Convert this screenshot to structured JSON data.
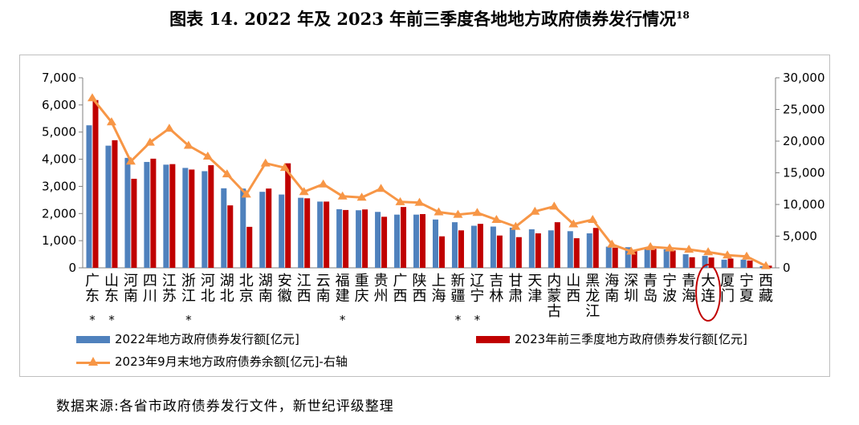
{
  "title": {
    "main": "图表 14. 2022 年及 2023 年前三季度各地地方政府债券发行情况",
    "footnote": "18"
  },
  "source": "数据来源:各省市政府债券发行文件，新世纪评级整理",
  "chart_data": {
    "type": "bar+line",
    "title": "2022年及2023年前三季度各地地方政府债券发行情况",
    "categories": [
      "广东*",
      "山东*",
      "河南",
      "四川",
      "江苏",
      "浙江*",
      "河北",
      "湖北",
      "北京",
      "湖南",
      "安徽",
      "江西",
      "云南",
      "福建*",
      "重庆",
      "贵州",
      "广西",
      "陕西",
      "上海",
      "新疆*",
      "辽宁*",
      "吉林",
      "甘肃",
      "天津",
      "内蒙古",
      "山西",
      "黑龙江",
      "海南",
      "深圳",
      "青岛",
      "宁波",
      "青海",
      "大连",
      "厦门",
      "宁夏",
      "西藏"
    ],
    "series": [
      {
        "name": "2022年地方政府债券发行额[亿元]",
        "axis": "left",
        "color": "#4f81bd",
        "values": [
          5250,
          4500,
          4050,
          3900,
          3800,
          3680,
          3560,
          2930,
          2920,
          2800,
          2700,
          2580,
          2440,
          2160,
          2120,
          2060,
          1960,
          1960,
          1780,
          1680,
          1550,
          1520,
          1480,
          1420,
          1380,
          1350,
          1270,
          780,
          760,
          700,
          680,
          500,
          440,
          300,
          300,
          60
        ]
      },
      {
        "name": "2023年前三季度地方政府债券发行额[亿元]",
        "axis": "left",
        "color": "#c00000",
        "values": [
          6180,
          4700,
          3280,
          4020,
          3820,
          3620,
          3780,
          2300,
          1510,
          2920,
          3850,
          2560,
          2440,
          2130,
          2150,
          1880,
          2240,
          1980,
          1160,
          1380,
          1620,
          1190,
          1130,
          1270,
          1680,
          1090,
          1470,
          740,
          620,
          700,
          640,
          390,
          380,
          340,
          270,
          80
        ]
      },
      {
        "name": "2023年9月末地方政府债券余额[亿元]-右轴",
        "axis": "right",
        "color": "#f79646",
        "values": [
          26800,
          23000,
          16800,
          19800,
          22000,
          19300,
          17600,
          14800,
          11600,
          16500,
          15800,
          12000,
          13200,
          11300,
          11100,
          12500,
          10400,
          10300,
          8800,
          8400,
          8700,
          7600,
          6500,
          8900,
          9700,
          6900,
          7600,
          3700,
          2600,
          3300,
          3100,
          2900,
          2500,
          2000,
          1800,
          300
        ]
      }
    ],
    "left_axis": {
      "min": 0,
      "max": 7000,
      "step": 1000,
      "ticks": [
        "0",
        "1,000",
        "2,000",
        "3,000",
        "4,000",
        "5,000",
        "6,000",
        "7,000"
      ]
    },
    "right_axis": {
      "min": 0,
      "max": 30000,
      "step": 5000,
      "ticks": [
        "0",
        "5,000",
        "10,000",
        "15,000",
        "20,000",
        "25,000",
        "30,000"
      ]
    },
    "highlighted_category": "大连",
    "legend": [
      "2022年地方政府债券发行额[亿元]",
      "2023年前三季度地方政府债券发行额[亿元]",
      "2023年9月末地方政府债券余额[亿元]-右轴"
    ]
  }
}
